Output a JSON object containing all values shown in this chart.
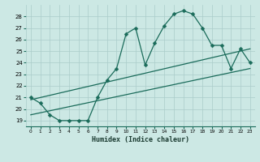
{
  "xlabel": "Humidex (Indice chaleur)",
  "xlim": [
    -0.5,
    23.5
  ],
  "ylim": [
    18.5,
    29.0
  ],
  "yticks": [
    19,
    20,
    21,
    22,
    23,
    24,
    25,
    26,
    27,
    28
  ],
  "xticks": [
    0,
    1,
    2,
    3,
    4,
    5,
    6,
    7,
    8,
    9,
    10,
    11,
    12,
    13,
    14,
    15,
    16,
    17,
    18,
    19,
    20,
    21,
    22,
    23
  ],
  "bg_color": "#cce8e4",
  "grid_color": "#aaccca",
  "line_color": "#1a6b5a",
  "series1_x": [
    0,
    1,
    2,
    3,
    4,
    5,
    6,
    7,
    8,
    9,
    10,
    11,
    12,
    13,
    14,
    15,
    16,
    17,
    18,
    19,
    20,
    21,
    22,
    23
  ],
  "series1_y": [
    21.0,
    20.5,
    19.5,
    19.0,
    19.0,
    19.0,
    19.0,
    21.0,
    22.5,
    23.5,
    26.5,
    27.0,
    23.8,
    25.7,
    27.2,
    28.2,
    28.5,
    28.2,
    27.0,
    25.5,
    25.5,
    23.5,
    25.2,
    24.0
  ],
  "series2_x": [
    0,
    23
  ],
  "series2_y": [
    19.5,
    23.5
  ],
  "series3_x": [
    0,
    23
  ],
  "series3_y": [
    20.8,
    25.2
  ],
  "marker_size": 2.5,
  "line_width": 0.9
}
